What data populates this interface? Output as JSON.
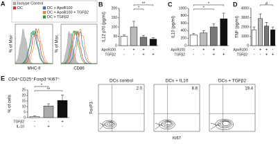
{
  "panel_a": {
    "label": "A",
    "legend": [
      {
        "name": "Isotype Control",
        "color": "#b0b0b0"
      },
      {
        "name": "DC",
        "color": "#d9302b"
      },
      {
        "name": "DC + ApoB100",
        "color": "#2f6fc2"
      },
      {
        "name": "DC + ApoB100 + TGFβ2",
        "color": "#e8923a"
      },
      {
        "name": "DC + TGFβ2",
        "color": "#3a9a3a"
      }
    ],
    "y_label": "% of Max",
    "x_labels": [
      "MHC-II",
      "CD86"
    ]
  },
  "chart_data": [
    {
      "type": "bar",
      "panel_label": "B",
      "y_label": "IL12 p70 (pg/ml)",
      "values": [
        50,
        100,
        45,
        35
      ],
      "errors": [
        8,
        30,
        10,
        8
      ],
      "colors": [
        "#ffffff",
        "#bbbbbb",
        "#777777",
        "#111111"
      ],
      "ylim": [
        0,
        200
      ],
      "yticks": [
        0,
        50,
        100,
        150,
        200
      ],
      "conditions": [
        {
          "name": "ApoB100",
          "signs": [
            "-",
            "+",
            "+",
            "-"
          ]
        },
        {
          "name": "TGFβ2",
          "signs": [
            "-",
            "-",
            "+",
            "+"
          ]
        }
      ],
      "annotations": [
        {
          "text": "**",
          "from": 1,
          "to": 3
        },
        {
          "text": "*",
          "from": 1,
          "to": 2
        }
      ]
    },
    {
      "type": "bar",
      "panel_label": "C",
      "y_label": "IL10 (pg/ml)",
      "values": [
        290,
        340,
        500,
        720
      ],
      "errors": [
        40,
        60,
        80,
        150
      ],
      "colors": [
        "#ffffff",
        "#bbbbbb",
        "#777777",
        "#111111"
      ],
      "ylim": [
        0,
        1000
      ],
      "yticks": [
        0,
        200,
        400,
        600,
        800,
        1000
      ],
      "conditions": [
        {
          "name": "ApoB100",
          "signs": [
            "-",
            "+",
            "+",
            "-"
          ]
        },
        {
          "name": "TGFβ2",
          "signs": [
            "-",
            "-",
            "+",
            "+"
          ]
        }
      ],
      "annotations": [
        {
          "text": "*",
          "from": 0,
          "to": 3
        },
        {
          "text": "*",
          "from": 0,
          "to": 2
        }
      ]
    },
    {
      "type": "bar",
      "panel_label": "D",
      "y_label": "TNF (pg/ml)",
      "values": [
        1700,
        2900,
        2100,
        1700
      ],
      "errors": [
        300,
        500,
        400,
        300
      ],
      "colors": [
        "#ffffff",
        "#bbbbbb",
        "#777777",
        "#111111"
      ],
      "ylim": [
        0,
        4000
      ],
      "yticks": [
        0,
        1000,
        2000,
        3000,
        4000
      ],
      "conditions": [
        {
          "name": "ApoB100",
          "signs": [
            "-",
            "+",
            "+",
            "-"
          ]
        },
        {
          "name": "TGFβ2",
          "signs": [
            "-",
            "-",
            "+",
            "+"
          ]
        }
      ],
      "annotations": [
        {
          "text": "#",
          "from": 1,
          "to": 3
        }
      ]
    },
    {
      "type": "bar",
      "panel_label": "E",
      "title": "CD4⁺CD25⁺Foxp3⁺Ki67⁺",
      "y_label": "% of cells",
      "values": [
        1,
        10.5,
        15.5
      ],
      "errors": [
        0.5,
        2,
        5
      ],
      "colors": [
        "#ffffff",
        "#aaaaaa",
        "#111111"
      ],
      "ylim": [
        0,
        25
      ],
      "yticks": [
        0,
        5,
        10,
        15,
        20,
        25
      ],
      "conditions": [
        {
          "name": "TGFβ2",
          "signs": [
            "-",
            "-",
            "+"
          ]
        },
        {
          "name": "IL-10",
          "signs": [
            "-",
            "+",
            "-"
          ]
        }
      ],
      "annotations": [
        {
          "text": "*",
          "from": 0,
          "to": 1
        },
        {
          "text": "**",
          "from": 0,
          "to": 2
        }
      ]
    }
  ],
  "flow": {
    "y_label": "FoxP3",
    "x_label": "Ki67",
    "plots": [
      {
        "title": "DCs control",
        "value": 2.0,
        "value_label": "2.0"
      },
      {
        "title": "DCs + IL10",
        "value": 8.8,
        "value_label": "8.8"
      },
      {
        "title": "DCs + TGFβ2",
        "value": 19.4,
        "value_label": "19.4"
      }
    ]
  }
}
